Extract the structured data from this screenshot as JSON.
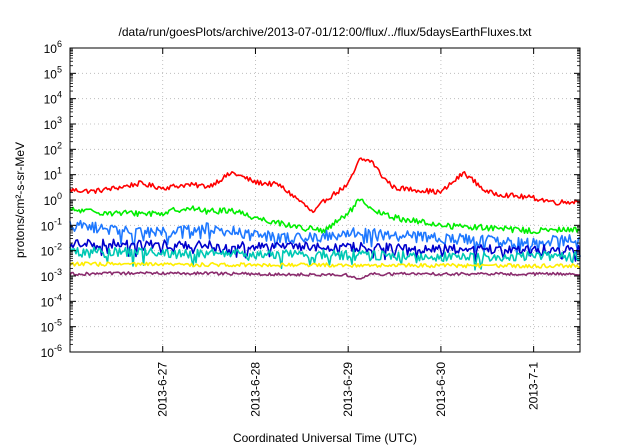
{
  "chart_data": {
    "type": "line",
    "title": "/data/run/goesPlots/archive/2013-07-01/12:00/flux/../flux/5daysEarthFluxes.txt",
    "xlabel": "Coordinated Universal Time (UTC)",
    "ylabel": "protons/cm²-s-sr-MeV",
    "x_range": [
      "2013-06-26 00:00",
      "2013-07-01 12:00"
    ],
    "x_ticks": [
      "2013-6-27",
      "2013-6-28",
      "2013-6-29",
      "2013-6-30",
      "2013-7-1"
    ],
    "y_scale": "log",
    "ylim": [
      1e-06,
      1000000.0
    ],
    "y_ticks": [
      "10^-6",
      "10^-5",
      "10^-4",
      "10^-3",
      "10^-2",
      "10^-1",
      "10^0",
      "10^1",
      "10^2",
      "10^3",
      "10^4",
      "10^5",
      "10^6"
    ],
    "grid": true,
    "legend": "none",
    "series": [
      {
        "color": "#ff0000",
        "points": [
          [
            "2013-06-26 00:00",
            2.5
          ],
          [
            "2013-06-26 06:00",
            2.2
          ],
          [
            "2013-06-26 12:00",
            3.0
          ],
          [
            "2013-06-26 18:00",
            4.5
          ],
          [
            "2013-06-27 00:00",
            3.0
          ],
          [
            "2013-06-27 06:00",
            4.0
          ],
          [
            "2013-06-27 12:00",
            3.5
          ],
          [
            "2013-06-27 18:00",
            12
          ],
          [
            "2013-06-28 00:00",
            5
          ],
          [
            "2013-06-28 06:00",
            4
          ],
          [
            "2013-06-28 12:00",
            0.8
          ],
          [
            "2013-06-28 15:00",
            0.3
          ],
          [
            "2013-06-28 18:00",
            1.0
          ],
          [
            "2013-06-29 00:00",
            4
          ],
          [
            "2013-06-29 03:00",
            40
          ],
          [
            "2013-06-29 06:00",
            35
          ],
          [
            "2013-06-29 09:00",
            8
          ],
          [
            "2013-06-29 12:00",
            3
          ],
          [
            "2013-06-29 18:00",
            2.5
          ],
          [
            "2013-06-30 00:00",
            2
          ],
          [
            "2013-06-30 06:00",
            12
          ],
          [
            "2013-06-30 12:00",
            2
          ],
          [
            "2013-06-30 18:00",
            1.5
          ],
          [
            "2013-07-01 00:00",
            1.2
          ],
          [
            "2013-07-01 06:00",
            0.8
          ],
          [
            "2013-07-01 12:00",
            0.9
          ]
        ]
      },
      {
        "color": "#00ee00",
        "points": [
          [
            "2013-06-26 00:00",
            0.4
          ],
          [
            "2013-06-26 12:00",
            0.3
          ],
          [
            "2013-06-27 00:00",
            0.3
          ],
          [
            "2013-06-27 06:00",
            0.5
          ],
          [
            "2013-06-27 12:00",
            0.35
          ],
          [
            "2013-06-27 18:00",
            0.4
          ],
          [
            "2013-06-28 00:00",
            0.2
          ],
          [
            "2013-06-28 12:00",
            0.08
          ],
          [
            "2013-06-28 18:00",
            0.06
          ],
          [
            "2013-06-29 00:00",
            0.3
          ],
          [
            "2013-06-29 03:00",
            1.0
          ],
          [
            "2013-06-29 06:00",
            0.4
          ],
          [
            "2013-06-29 12:00",
            0.2
          ],
          [
            "2013-06-30 00:00",
            0.1
          ],
          [
            "2013-06-30 12:00",
            0.08
          ],
          [
            "2013-07-01 00:00",
            0.06
          ],
          [
            "2013-07-01 12:00",
            0.07
          ]
        ]
      },
      {
        "color": "#1e78ff",
        "points": [
          [
            "2013-06-26 00:00",
            0.1
          ],
          [
            "2013-06-26 12:00",
            0.07
          ],
          [
            "2013-06-27 00:00",
            0.05
          ],
          [
            "2013-06-27 12:00",
            0.08
          ],
          [
            "2013-06-28 00:00",
            0.04
          ],
          [
            "2013-06-28 12:00",
            0.03
          ],
          [
            "2013-06-29 00:00",
            0.05
          ],
          [
            "2013-06-29 12:00",
            0.04
          ],
          [
            "2013-06-30 00:00",
            0.03
          ],
          [
            "2013-06-30 12:00",
            0.025
          ],
          [
            "2013-07-01 00:00",
            0.02
          ],
          [
            "2013-07-01 12:00",
            0.03
          ]
        ]
      },
      {
        "color": "#0000cc",
        "points": [
          [
            "2013-06-26 00:00",
            0.02
          ],
          [
            "2013-06-27 00:00",
            0.018
          ],
          [
            "2013-06-28 00:00",
            0.015
          ],
          [
            "2013-06-29 00:00",
            0.014
          ],
          [
            "2013-06-30 00:00",
            0.012
          ],
          [
            "2013-07-01 00:00",
            0.011
          ],
          [
            "2013-07-01 12:00",
            0.012
          ]
        ]
      },
      {
        "color": "#00c8b4",
        "points": [
          [
            "2013-06-26 00:00",
            0.009
          ],
          [
            "2013-06-27 00:00",
            0.008
          ],
          [
            "2013-06-28 00:00",
            0.007
          ],
          [
            "2013-06-29 00:00",
            0.007
          ],
          [
            "2013-06-30 00:00",
            0.006
          ],
          [
            "2013-07-01 00:00",
            0.006
          ],
          [
            "2013-07-01 12:00",
            0.006
          ]
        ]
      },
      {
        "color": "#ffee00",
        "points": [
          [
            "2013-06-26 00:00",
            0.003
          ],
          [
            "2013-06-27 00:00",
            0.0028
          ],
          [
            "2013-06-28 00:00",
            0.0028
          ],
          [
            "2013-06-29 00:00",
            0.0027
          ],
          [
            "2013-06-30 00:00",
            0.0026
          ],
          [
            "2013-07-01 00:00",
            0.0025
          ],
          [
            "2013-07-01 12:00",
            0.0026
          ]
        ]
      },
      {
        "color": "#8b2c6e",
        "points": [
          [
            "2013-06-26 00:00",
            0.0012
          ],
          [
            "2013-06-27 00:00",
            0.0013
          ],
          [
            "2013-06-28 00:00",
            0.0012
          ],
          [
            "2013-06-29 00:00",
            0.0011
          ],
          [
            "2013-06-29 03:00",
            0.0007
          ],
          [
            "2013-06-29 06:00",
            0.0012
          ],
          [
            "2013-06-30 00:00",
            0.0012
          ],
          [
            "2013-07-01 00:00",
            0.0012
          ],
          [
            "2013-07-01 12:00",
            0.0012
          ]
        ]
      }
    ]
  }
}
